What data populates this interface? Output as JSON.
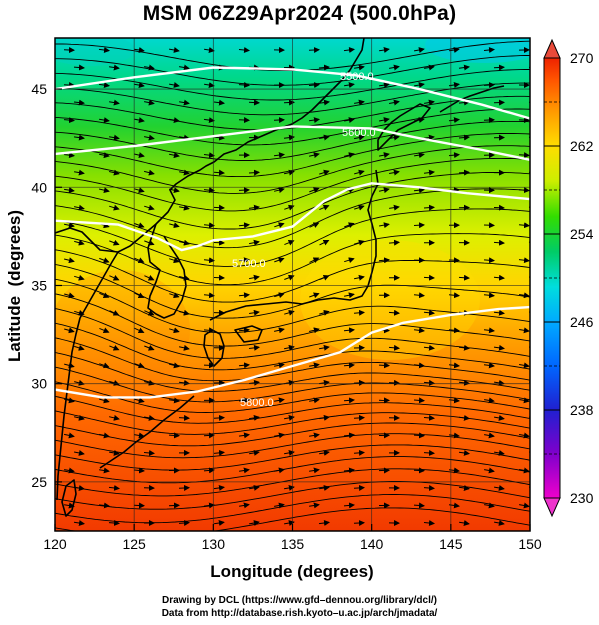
{
  "title": "MSM 06Z29Apr2024 (500.0hPa)",
  "credits": {
    "line1": "Drawing by DCL (https://www.gfd–dennou.org/library/dcl/)",
    "line2": "Data from http://database.rish.kyoto–u.ac.jp/arch/jmadata/"
  },
  "chart_data": {
    "type": "heatmap",
    "xlabel": "Longitude (degrees)",
    "ylabel": "Latitude  (degrees)",
    "xlim": [
      120,
      150
    ],
    "ylim": [
      22.5,
      47.6
    ],
    "x_ticks": [
      120,
      125,
      130,
      135,
      140,
      145,
      150
    ],
    "y_ticks": [
      25,
      30,
      35,
      40,
      45
    ],
    "grid": true,
    "colorbar": {
      "min": 230,
      "max": 270,
      "tick_labels": [
        230,
        238,
        246,
        254,
        262,
        270
      ],
      "extend": "both",
      "colormap": [
        "#ee00cc",
        "#8000cc",
        "#2020d0",
        "#0066ff",
        "#00aaff",
        "#00dddd",
        "#00cc66",
        "#33dd00",
        "#ccee00",
        "#ffdd00",
        "#ff9900",
        "#ff5500",
        "#ee2200"
      ]
    },
    "contours": [
      {
        "label": "5500.0",
        "points": [
          [
            120,
            45.0
          ],
          [
            125,
            45.6
          ],
          [
            130,
            46.1
          ],
          [
            135,
            46.0
          ],
          [
            139,
            45.7
          ],
          [
            143,
            45.0
          ],
          [
            147,
            44.2
          ],
          [
            150,
            43.5
          ]
        ]
      },
      {
        "label": "5600.0",
        "points": [
          [
            120,
            41.7
          ],
          [
            125,
            42.1
          ],
          [
            130,
            42.6
          ],
          [
            135,
            43.1
          ],
          [
            140,
            43.0
          ],
          [
            143,
            42.5
          ],
          [
            147,
            41.9
          ],
          [
            150,
            41.4
          ]
        ]
      },
      {
        "label": "5700.0",
        "points": [
          [
            120,
            38.3
          ],
          [
            124,
            38.1
          ],
          [
            126.5,
            37.4
          ],
          [
            128,
            36.8
          ],
          [
            129,
            37.0
          ],
          [
            130,
            37.3
          ],
          [
            132.5,
            37.5
          ],
          [
            135,
            38.0
          ],
          [
            137,
            39.3
          ],
          [
            138.5,
            39.9
          ],
          [
            140,
            40.2
          ],
          [
            143,
            40.0
          ],
          [
            146,
            39.7
          ],
          [
            150,
            39.4
          ]
        ]
      },
      {
        "label": "5800.0",
        "points": [
          [
            120,
            29.7
          ],
          [
            123,
            29.3
          ],
          [
            126,
            29.3
          ],
          [
            129,
            29.6
          ],
          [
            132,
            30.2
          ],
          [
            135,
            30.9
          ],
          [
            138,
            31.6
          ],
          [
            140,
            32.6
          ],
          [
            142,
            33.1
          ],
          [
            145,
            33.5
          ],
          [
            148,
            33.8
          ],
          [
            150,
            33.9
          ]
        ]
      }
    ]
  }
}
